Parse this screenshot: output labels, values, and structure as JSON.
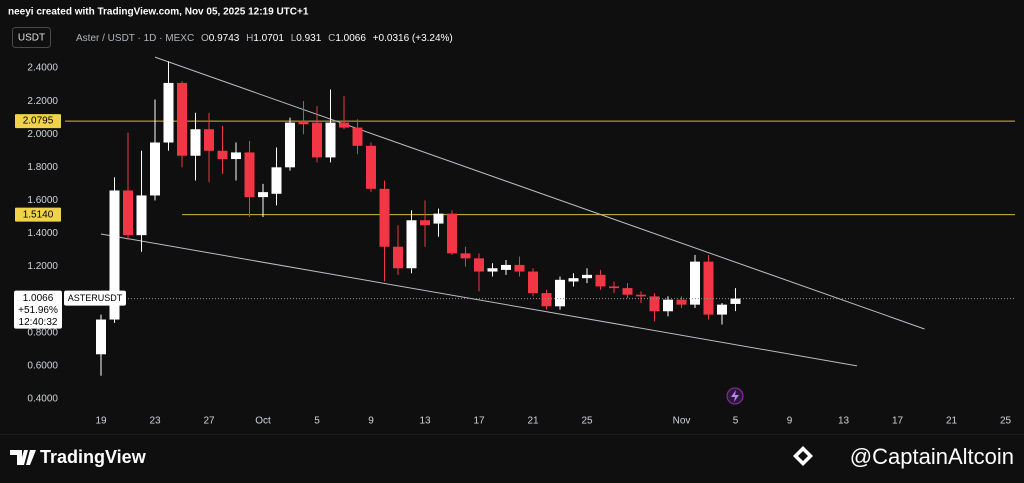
{
  "credit": "neeyi created with TradingView.com, Nov 05, 2025 12:19 UTC+1",
  "currency": "USDT",
  "watermarks": [
    "TradingView",
    "@CaptainAltcoin"
  ],
  "chart_data": {
    "type": "candlestick",
    "title": "Aster / USDT · 1D · MEXC",
    "ohlc_labels": [
      "O",
      "H",
      "L",
      "C"
    ],
    "change": "+0.0316 (+3.24%)",
    "x": [
      "09-19",
      "09-20",
      "09-21",
      "09-22",
      "09-23",
      "09-24",
      "09-25",
      "09-26",
      "09-27",
      "09-28",
      "09-29",
      "09-30",
      "10-01",
      "10-02",
      "10-03",
      "10-04",
      "10-05",
      "10-06",
      "10-07",
      "10-08",
      "10-09",
      "10-10",
      "10-11",
      "10-12",
      "10-13",
      "10-14",
      "10-15",
      "10-16",
      "10-17",
      "10-18",
      "10-19",
      "10-20",
      "10-21",
      "10-22",
      "10-23",
      "10-24",
      "10-25",
      "10-26",
      "10-27",
      "10-28",
      "10-29",
      "10-30",
      "10-31",
      "11-01",
      "11-02",
      "11-03",
      "11-04",
      "11-05"
    ],
    "series": [
      {
        "name": "ASTERUSDT",
        "up_color": "#ffffff",
        "down_color": "#f23645",
        "open": [
          0.67,
          0.88,
          1.66,
          1.39,
          1.63,
          1.95,
          2.31,
          1.87,
          2.03,
          1.9,
          1.85,
          1.89,
          1.62,
          1.64,
          1.8,
          2.08,
          2.07,
          1.86,
          2.07,
          2.04,
          1.93,
          1.67,
          1.32,
          1.19,
          1.48,
          1.46,
          1.52,
          1.28,
          1.25,
          1.17,
          1.18,
          1.21,
          1.17,
          1.04,
          0.96,
          1.11,
          1.13,
          1.15,
          1.08,
          1.07,
          1.03,
          1.02,
          0.93,
          1.0,
          0.97,
          1.23,
          0.91,
          0.9743
        ],
        "high": [
          0.91,
          1.74,
          2.01,
          1.9,
          2.21,
          2.44,
          2.32,
          2.13,
          2.13,
          2.05,
          1.95,
          1.96,
          1.7,
          1.92,
          2.1,
          2.2,
          2.17,
          2.27,
          2.23,
          2.09,
          1.95,
          1.72,
          1.45,
          1.54,
          1.6,
          1.55,
          1.54,
          1.32,
          1.28,
          1.22,
          1.24,
          1.26,
          1.19,
          1.06,
          1.14,
          1.16,
          1.19,
          1.18,
          1.11,
          1.1,
          1.05,
          1.04,
          1.02,
          1.02,
          1.27,
          1.27,
          0.98,
          1.0701
        ],
        "low": [
          0.54,
          0.86,
          1.36,
          1.29,
          1.6,
          1.9,
          1.8,
          1.72,
          1.71,
          1.76,
          1.72,
          1.5,
          1.5,
          1.57,
          1.78,
          2.0,
          1.83,
          1.83,
          2.03,
          1.88,
          1.65,
          1.11,
          1.15,
          1.16,
          1.32,
          1.38,
          1.27,
          1.2,
          1.05,
          1.14,
          1.15,
          1.14,
          1.02,
          0.94,
          0.94,
          1.08,
          1.1,
          1.06,
          1.04,
          1.01,
          0.98,
          0.87,
          0.9,
          0.95,
          0.95,
          0.88,
          0.85,
          0.931
        ],
        "close": [
          0.88,
          1.66,
          1.39,
          1.63,
          1.95,
          2.31,
          1.87,
          2.03,
          1.9,
          1.85,
          1.89,
          1.62,
          1.65,
          1.8,
          2.07,
          2.06,
          1.86,
          2.07,
          2.04,
          1.93,
          1.67,
          1.32,
          1.19,
          1.48,
          1.45,
          1.52,
          1.28,
          1.25,
          1.17,
          1.19,
          1.21,
          1.17,
          1.04,
          0.96,
          1.12,
          1.13,
          1.15,
          1.08,
          1.07,
          1.03,
          1.02,
          0.93,
          1.0,
          0.97,
          1.23,
          0.91,
          0.97,
          1.0066
        ]
      }
    ],
    "price_tag": {
      "change": "+51.96%",
      "countdown": "12:40:32"
    },
    "hlines": [
      {
        "value": 2.0795,
        "color": "#d4b73a"
      },
      {
        "value": 1.514,
        "label": "1.5140",
        "color": "#d4b73a",
        "from": "09-25"
      }
    ],
    "trendlines": [
      {
        "x": [
          "09-23",
          "11-19"
        ],
        "y": [
          2.466,
          0.823
        ],
        "color": "#b9bcc4"
      },
      {
        "x": [
          "09-19",
          "11-14"
        ],
        "y": [
          1.397,
          0.6
        ],
        "color": "#b9bcc4"
      }
    ],
    "xlim": [
      "09-12",
      "11-26"
    ],
    "xticks": [
      {
        "value": "09-19",
        "label": "19"
      },
      {
        "value": "09-23",
        "label": "23"
      },
      {
        "value": "09-27",
        "label": "27"
      },
      {
        "value": "10-01",
        "label": "Oct"
      },
      {
        "value": "10-05",
        "label": "5"
      },
      {
        "value": "10-09",
        "label": "9"
      },
      {
        "value": "10-13",
        "label": "13"
      },
      {
        "value": "10-17",
        "label": "17"
      },
      {
        "value": "10-21",
        "label": "21"
      },
      {
        "value": "10-25",
        "label": "25"
      },
      {
        "value": "11-01",
        "label": "Nov"
      },
      {
        "value": "11-05",
        "label": "5"
      },
      {
        "value": "11-09",
        "label": "9"
      },
      {
        "value": "11-13",
        "label": "13"
      },
      {
        "value": "11-17",
        "label": "17"
      },
      {
        "value": "11-21",
        "label": "21"
      },
      {
        "value": "11-25",
        "label": "25"
      }
    ],
    "ylim": [
      0.3,
      2.5
    ],
    "yticks": [
      {
        "value": 0.4,
        "label": "0.4000"
      },
      {
        "value": 0.6,
        "label": "0.6000"
      },
      {
        "value": 0.8,
        "label": "0.8000"
      },
      {
        "value": 1.2,
        "label": "1.2000"
      },
      {
        "value": 1.4,
        "label": "1.4000"
      },
      {
        "value": 1.6,
        "label": "1.6000"
      },
      {
        "value": 1.8,
        "label": "1.8000"
      },
      {
        "value": 2.0,
        "label": "2.0000"
      },
      {
        "value": 2.2,
        "label": "2.2000"
      },
      {
        "value": 2.4,
        "label": "2.4000"
      }
    ],
    "grid": false
  }
}
